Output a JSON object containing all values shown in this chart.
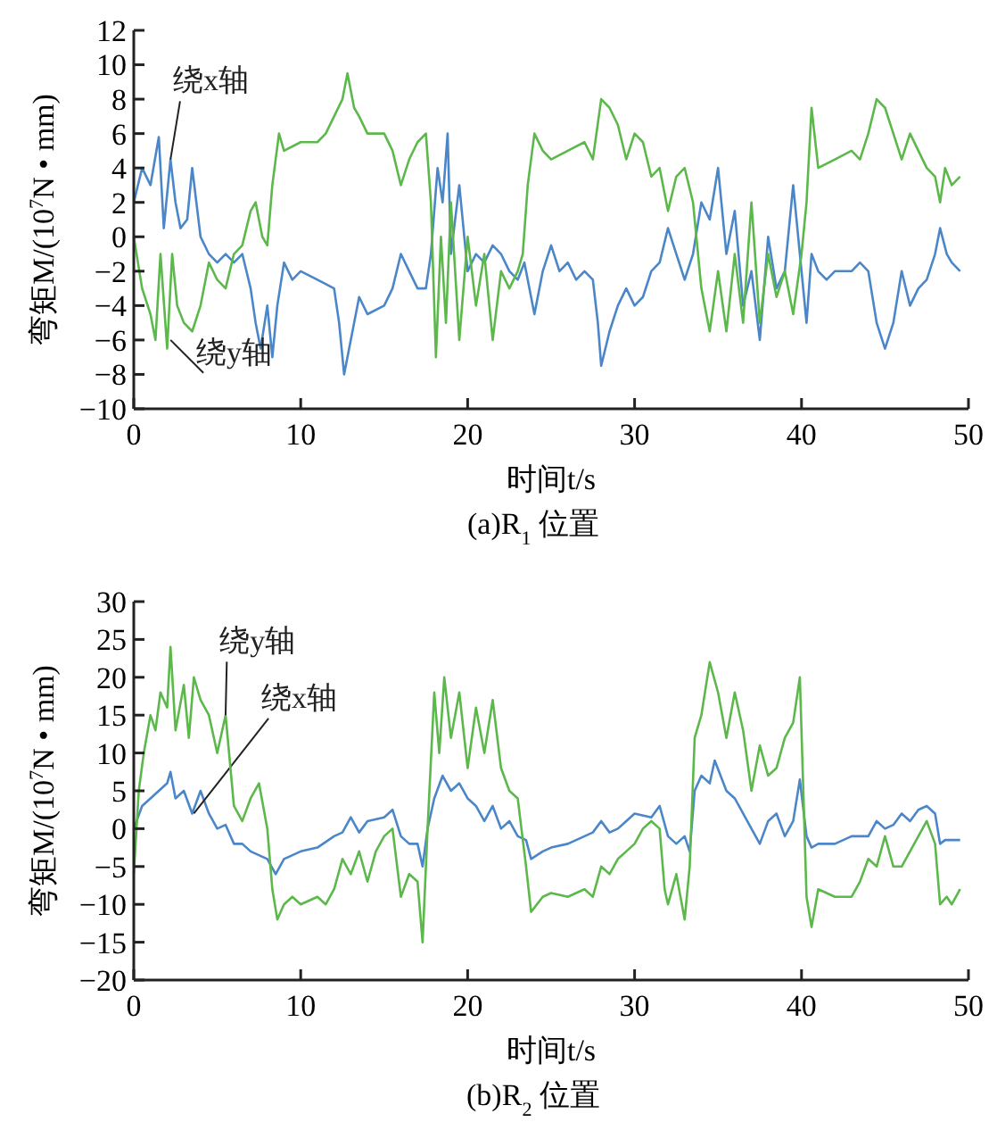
{
  "chart_data": [
    {
      "type": "line",
      "title": "(a)R$_{1}$ 位置",
      "xlabel": "时间t/s",
      "ylabel": "弯矩M/(10$^{7}$N • mm)",
      "xlim": [
        0,
        50
      ],
      "ylim": [
        -10,
        12
      ],
      "xticks": [
        0,
        10,
        20,
        30,
        40,
        50
      ],
      "yticks": [
        -10,
        -8,
        -6,
        -4,
        -2,
        0,
        2,
        4,
        6,
        8,
        10,
        12
      ],
      "series": [
        {
          "name": "绕x轴",
          "color": "#4a86c8",
          "x": [
            0,
            0.5,
            1,
            1.5,
            1.8,
            2.2,
            2.5,
            2.8,
            3.2,
            3.5,
            4,
            4.5,
            5,
            5.5,
            6,
            6.5,
            7,
            7.3,
            7.6,
            8,
            8.3,
            8.6,
            9,
            9.5,
            10,
            11,
            12,
            12.3,
            12.6,
            13,
            13.5,
            14,
            15,
            15.5,
            16,
            16.5,
            17,
            17.5,
            17.8,
            18.2,
            18.5,
            18.8,
            19,
            19.5,
            20,
            20.5,
            21,
            21.5,
            22,
            22.5,
            23,
            23.4,
            24,
            24.5,
            25,
            25.5,
            26,
            26.5,
            27,
            27.5,
            27.8,
            28,
            28.5,
            29,
            29.5,
            30,
            30.5,
            31,
            31.5,
            32,
            32.5,
            33,
            33.5,
            34,
            34.5,
            35,
            35.5,
            36,
            36.5,
            37,
            37.5,
            38,
            38.5,
            39,
            39.5,
            40,
            40.3,
            40.6,
            41,
            41.5,
            42,
            43,
            43.5,
            44,
            44.5,
            45,
            45.5,
            46,
            46.5,
            47,
            47.5,
            48,
            48.3,
            48.7,
            49,
            49.5
          ],
          "values": [
            2,
            4,
            3,
            5.8,
            0.5,
            4.5,
            2,
            0.5,
            1,
            4,
            0,
            -1,
            -1.5,
            -1,
            -1.5,
            -1,
            -3,
            -5,
            -6.5,
            -4,
            -7,
            -4,
            -1.5,
            -2.5,
            -2,
            -2.5,
            -3,
            -5,
            -8,
            -6,
            -3.5,
            -4.5,
            -4,
            -3,
            -1,
            -2,
            -3,
            -3,
            -1,
            4,
            2,
            6,
            -1,
            3,
            -2,
            -1,
            -1.5,
            -0.5,
            -1,
            -2,
            -2.5,
            -1.5,
            -4.5,
            -2,
            -0.5,
            -2,
            -1.5,
            -2.5,
            -2,
            -2.5,
            -5,
            -7.5,
            -5.5,
            -4,
            -3,
            -4,
            -3.5,
            -2,
            -1.5,
            0.5,
            -1,
            -2.5,
            -1,
            2,
            1,
            4,
            -1,
            1.5,
            -4,
            -2,
            -6,
            0,
            -3,
            -2,
            3,
            -2,
            -5,
            -1,
            -2,
            -2.5,
            -2,
            -2,
            -1.5,
            -2,
            -5,
            -6.5,
            -5,
            -2,
            -4,
            -3,
            -2.5,
            -1,
            0.5,
            -1,
            -1.5,
            -2
          ]
        },
        {
          "name": "绕y轴",
          "color": "#5cb84a",
          "x": [
            0,
            0.5,
            1,
            1.3,
            1.6,
            2,
            2.3,
            2.6,
            3,
            3.5,
            4,
            4.5,
            5,
            5.5,
            6,
            6.5,
            7,
            7.3,
            7.7,
            8,
            8.3,
            8.7,
            9,
            10,
            11,
            11.5,
            12,
            12.5,
            12.8,
            13.2,
            13.5,
            14,
            15,
            15.5,
            16,
            16.5,
            17,
            17.5,
            17.8,
            18.1,
            18.4,
            18.7,
            19,
            19.5,
            20,
            20.5,
            21,
            21.5,
            22,
            22.5,
            23,
            23.3,
            23.6,
            24,
            24.5,
            25,
            26,
            27,
            27.5,
            28,
            28.5,
            29,
            29.5,
            30,
            30.5,
            31,
            31.5,
            32,
            32.5,
            33,
            33.5,
            34,
            34.5,
            35,
            35.5,
            36,
            36.5,
            37,
            37.5,
            38,
            38.5,
            39,
            39.5,
            40,
            40.3,
            40.6,
            41,
            42,
            43,
            43.5,
            44,
            44.5,
            45,
            45.5,
            46,
            46.5,
            47,
            47.5,
            48,
            48.3,
            48.6,
            49,
            49.5
          ],
          "values": [
            0,
            -3,
            -4.5,
            -6,
            -1,
            -6.5,
            -1,
            -4,
            -5,
            -5.5,
            -4,
            -1.5,
            -2.5,
            -3,
            -1,
            -0.5,
            1.5,
            2,
            0,
            -0.5,
            3,
            6,
            5,
            5.5,
            5.5,
            6,
            7,
            8,
            9.5,
            7.5,
            7,
            6,
            6,
            5,
            3,
            4.5,
            5.5,
            6,
            2,
            -7,
            0,
            -5,
            2,
            -6,
            0,
            -4,
            -1,
            -6,
            -2,
            -3,
            -2,
            -1,
            3,
            6,
            5,
            4.5,
            5,
            5.5,
            4.5,
            8,
            7.5,
            6.5,
            4.5,
            6,
            5.5,
            3.5,
            4,
            1.5,
            3.5,
            4,
            2,
            -3,
            -5.5,
            -2,
            -5.5,
            -1,
            -5,
            2,
            -5,
            -1,
            -3.5,
            -2,
            -4.5,
            -1,
            2,
            7.5,
            4,
            4.5,
            5,
            4.5,
            6,
            8,
            7.5,
            6,
            4.5,
            6,
            5,
            4,
            3.5,
            2,
            4,
            3,
            3.5
          ]
        }
      ]
    },
    {
      "type": "line",
      "title": "(b)R$_{2}$ 位置",
      "xlabel": "时间t/s",
      "ylabel": "弯矩M/(10$^{7}$N • mm)",
      "xlim": [
        0,
        50
      ],
      "ylim": [
        -20,
        30
      ],
      "xticks": [
        0,
        10,
        20,
        30,
        40,
        50
      ],
      "yticks": [
        -20,
        -15,
        -10,
        -5,
        0,
        5,
        10,
        15,
        20,
        25,
        30
      ],
      "series": [
        {
          "name": "绕x轴",
          "color": "#4a86c8",
          "x": [
            0,
            0.5,
            1,
            1.5,
            2,
            2.2,
            2.5,
            3,
            3.5,
            4,
            4.5,
            5,
            5.5,
            6,
            6.5,
            7,
            7.5,
            8,
            8.5,
            9,
            9.5,
            10,
            11,
            12,
            12.5,
            13,
            13.5,
            14,
            15,
            15.5,
            16,
            16.5,
            17,
            17.3,
            17.6,
            18,
            18.5,
            19,
            19.5,
            20,
            20.5,
            21,
            21.5,
            22,
            22.5,
            23,
            23.5,
            23.8,
            24.5,
            25,
            26,
            27,
            27.5,
            28,
            28.5,
            29,
            29.5,
            30,
            31,
            31.5,
            32,
            32.5,
            33,
            33.3,
            33.6,
            34,
            34.5,
            34.8,
            35.5,
            36,
            36.5,
            37,
            37.5,
            38,
            38.5,
            39,
            39.5,
            39.9,
            40.3,
            40.6,
            41,
            42,
            43,
            44,
            44.5,
            45,
            45.5,
            46,
            46.5,
            47,
            47.5,
            48,
            48.3,
            48.6,
            49,
            49.5
          ],
          "values": [
            0,
            3,
            4,
            5,
            6,
            7.5,
            4,
            5,
            2,
            5,
            2,
            0,
            0.5,
            -2,
            -2,
            -3,
            -3.5,
            -4,
            -6,
            -4,
            -3.5,
            -3,
            -2.5,
            -1,
            -0.5,
            1.5,
            -0.5,
            1,
            1.5,
            2.5,
            -1,
            -2,
            -2,
            -5,
            0,
            4,
            7,
            5,
            6,
            4,
            3,
            1,
            3,
            0,
            1,
            -1,
            -1.5,
            -4,
            -3,
            -2.5,
            -2,
            -1,
            -0.5,
            1,
            -0.5,
            0,
            1,
            2,
            1.5,
            3,
            -1,
            -2,
            -1,
            -3,
            5,
            7,
            6,
            9,
            5,
            4,
            2,
            0,
            -2,
            1,
            2,
            -1,
            1,
            6.5,
            -1,
            -2.5,
            -2,
            -2,
            -1,
            -1,
            1,
            0,
            0.5,
            2,
            1,
            2.5,
            3,
            2,
            -2,
            -1.5,
            -1.5,
            -1.5
          ]
        },
        {
          "name": "绕y轴",
          "color": "#5cb84a",
          "x": [
            0,
            0.3,
            0.6,
            1,
            1.3,
            1.6,
            2,
            2.2,
            2.5,
            3,
            3.3,
            3.6,
            4,
            4.5,
            5,
            5.5,
            6,
            6.5,
            7,
            7.5,
            8,
            8.3,
            8.6,
            9,
            9.5,
            10,
            11,
            11.5,
            12,
            12.5,
            13,
            13.5,
            14,
            14.5,
            15,
            15.5,
            16,
            16.5,
            17,
            17.3,
            17.6,
            18,
            18.3,
            18.6,
            19,
            19.5,
            20,
            20.5,
            21,
            21.5,
            22,
            22.5,
            23,
            23.5,
            23.8,
            24.5,
            25,
            26,
            27,
            27.5,
            28,
            28.5,
            29,
            29.5,
            30,
            30.5,
            31,
            31.5,
            31.8,
            32,
            32.5,
            33,
            33.3,
            33.6,
            34,
            34.5,
            35,
            35.5,
            36,
            36.5,
            37,
            37.5,
            38,
            38.5,
            39,
            39.5,
            39.9,
            40.3,
            40.6,
            41,
            42,
            43,
            43.5,
            44,
            44.5,
            45,
            45.5,
            46,
            46.5,
            47,
            47.5,
            48,
            48.3,
            48.7,
            49,
            49.5
          ],
          "values": [
            -6,
            5,
            10,
            15,
            13,
            18,
            16,
            24,
            13,
            19,
            12,
            20,
            17,
            15,
            10,
            15,
            3,
            1,
            4,
            6,
            0,
            -8,
            -12,
            -10,
            -9,
            -10,
            -9,
            -10,
            -8,
            -4,
            -6,
            -3,
            -7,
            -3,
            -1,
            0,
            -9,
            -6,
            -7,
            -15,
            0,
            18,
            10,
            20,
            12,
            18,
            8,
            16,
            10,
            17,
            8,
            5,
            4,
            -5,
            -11,
            -9,
            -8.5,
            -9,
            -8,
            -9,
            -5,
            -6,
            -4,
            -3,
            -2,
            0,
            1,
            0,
            -8,
            -10,
            -6,
            -12,
            -5,
            12,
            15,
            22,
            18,
            12,
            18,
            13,
            5,
            11,
            7,
            8,
            12,
            14,
            20,
            -9,
            -13,
            -8,
            -9,
            -9,
            -7,
            -4,
            -5,
            -1,
            -5,
            -5,
            -3,
            -1,
            1,
            -2,
            -10,
            -9,
            -10,
            -8
          ]
        }
      ]
    }
  ]
}
